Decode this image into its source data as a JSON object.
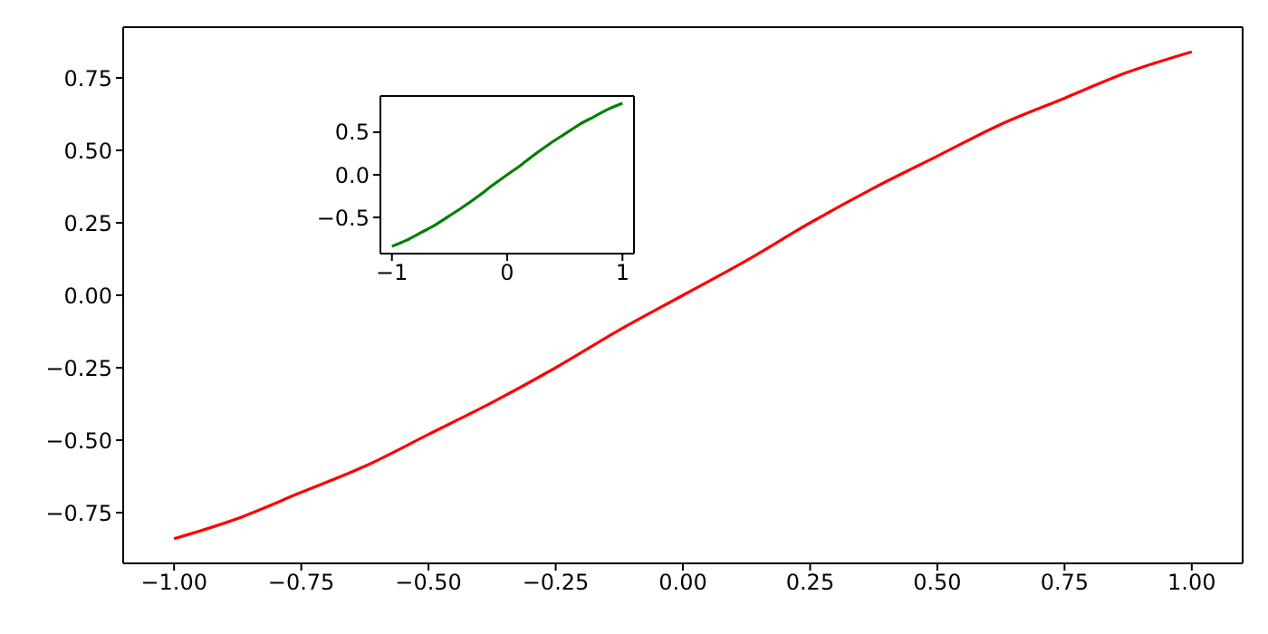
{
  "chart_data": [
    {
      "type": "line",
      "x": [
        -1,
        -0.875,
        -0.75,
        -0.625,
        -0.5,
        -0.375,
        -0.25,
        -0.125,
        0,
        0.125,
        0.25,
        0.375,
        0.5,
        0.625,
        0.75,
        0.875,
        1
      ],
      "series": [
        {
          "color": "#ff0000",
          "values": [
            -0.84,
            -0.77,
            -0.68,
            -0.59,
            -0.48,
            -0.37,
            -0.25,
            -0.12,
            0,
            0.12,
            0.25,
            0.37,
            0.48,
            0.59,
            0.68,
            0.77,
            0.84
          ]
        }
      ],
      "xlim": [
        -1.1,
        1.1
      ],
      "ylim": [
        -0.925,
        0.925
      ],
      "xticks": [
        {
          "value": -1,
          "label": "−1.00"
        },
        {
          "value": -0.75,
          "label": "−0.75"
        },
        {
          "value": -0.5,
          "label": "−0.50"
        },
        {
          "value": -0.25,
          "label": "−0.25"
        },
        {
          "value": 0,
          "label": "0.00"
        },
        {
          "value": 0.25,
          "label": "0.25"
        },
        {
          "value": 0.5,
          "label": "0.50"
        },
        {
          "value": 0.75,
          "label": "0.75"
        },
        {
          "value": 1,
          "label": "1.00"
        }
      ],
      "yticks": [
        {
          "value": -0.75,
          "label": "−0.75"
        },
        {
          "value": -0.5,
          "label": "−0.50"
        },
        {
          "value": -0.25,
          "label": "−0.25"
        },
        {
          "value": 0,
          "label": "0.00"
        },
        {
          "value": 0.25,
          "label": "0.25"
        },
        {
          "value": 0.5,
          "label": "0.50"
        },
        {
          "value": 0.75,
          "label": "0.75"
        }
      ],
      "marker": "none",
      "line_style": "solid"
    },
    {
      "type": "line",
      "x": [
        -1,
        -0.875,
        -0.75,
        -0.625,
        -0.5,
        -0.375,
        -0.25,
        -0.125,
        0,
        0.125,
        0.25,
        0.375,
        0.5,
        0.625,
        0.75,
        0.875,
        1
      ],
      "series": [
        {
          "color": "#008000",
          "values": [
            -0.84,
            -0.77,
            -0.68,
            -0.59,
            -0.48,
            -0.37,
            -0.25,
            -0.12,
            0,
            0.12,
            0.25,
            0.37,
            0.48,
            0.59,
            0.68,
            0.77,
            0.84
          ]
        }
      ],
      "xlim": [
        -1.1,
        1.1
      ],
      "ylim": [
        -0.925,
        0.925
      ],
      "xticks": [
        {
          "value": -1,
          "label": "−1"
        },
        {
          "value": 0,
          "label": "0"
        },
        {
          "value": 1,
          "label": "1"
        }
      ],
      "yticks": [
        {
          "value": -0.5,
          "label": "−0.5"
        },
        {
          "value": 0,
          "label": "0.0"
        },
        {
          "value": 0.5,
          "label": "0.5"
        }
      ],
      "marker": "none",
      "line_style": "solid"
    }
  ]
}
